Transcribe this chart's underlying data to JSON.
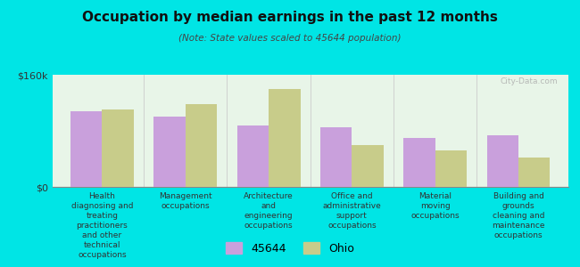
{
  "title": "Occupation by median earnings in the past 12 months",
  "subtitle": "(Note: State values scaled to 45644 population)",
  "categories": [
    "Health\ndiagnosing and\ntreating\npractitioners\nand other\ntechnical\noccupations",
    "Management\noccupations",
    "Architecture\nand\nengineering\noccupations",
    "Office and\nadministrative\nsupport\noccupations",
    "Material\nmoving\noccupations",
    "Building and\ngrounds\ncleaning and\nmaintenance\noccupations"
  ],
  "values_45644": [
    108000,
    100000,
    88000,
    85000,
    70000,
    74000
  ],
  "values_ohio": [
    110000,
    118000,
    140000,
    60000,
    52000,
    42000
  ],
  "color_45644": "#c9a0dc",
  "color_ohio": "#c8cc8a",
  "ylim": [
    0,
    160000
  ],
  "ytick_labels": [
    "$0",
    "$160k"
  ],
  "background_color": "#00e5e5",
  "plot_bg_color": "#e8f5e8",
  "legend_labels": [
    "45644",
    "Ohio"
  ],
  "watermark": "City-Data.com",
  "bar_width": 0.38
}
